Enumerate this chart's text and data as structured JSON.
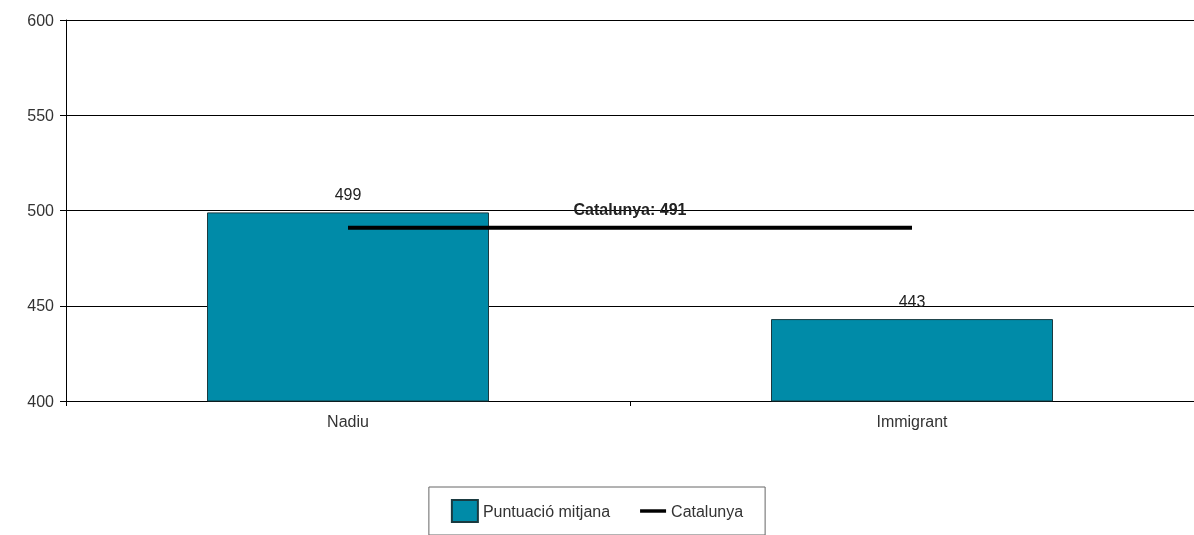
{
  "chart_data": {
    "type": "bar",
    "categories": [
      "Nadiu",
      "Immigrant"
    ],
    "series": [
      {
        "name": "Puntuació mitjana",
        "color": "#008ba8",
        "values": [
          499,
          443
        ],
        "value_labels": [
          "499",
          "443"
        ]
      },
      {
        "name": "Catalunya",
        "type": "line",
        "color": "#000000",
        "values": [
          491,
          491
        ],
        "marker": "none"
      }
    ],
    "annotations": [
      {
        "text": "Catalunya: 491",
        "y": 491
      }
    ],
    "ylim": [
      400,
      600
    ],
    "yticks": [
      400,
      450,
      500,
      550,
      600
    ],
    "grid": "y",
    "legend": "bottom"
  }
}
